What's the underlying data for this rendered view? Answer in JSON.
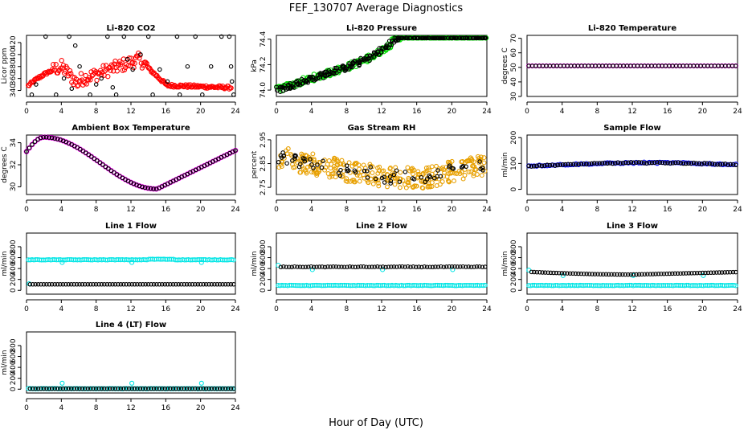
{
  "figure": {
    "title": "FEF_130707  Average Diagnostics",
    "xlabel": "Hour of Day (UTC)"
  },
  "chart_data": [
    {
      "type": "scatter",
      "title": "Li-820 CO2",
      "ylabel": "Licor ppm",
      "xlim": [
        0,
        24
      ],
      "ylim": [
        330,
        432
      ],
      "xticks": [
        0,
        4,
        8,
        12,
        16,
        20,
        24
      ],
      "yticks": [
        340,
        360,
        380,
        400,
        420
      ],
      "series": [
        {
          "color": "#ff0000",
          "size": 2.6,
          "cloud": "co2"
        },
        {
          "color": "#000000",
          "size": 2.2,
          "points": [
            [
              0.6,
              333
            ],
            [
              1.1,
              350
            ],
            [
              2.2,
              430
            ],
            [
              3.4,
              333
            ],
            [
              4.3,
              360
            ],
            [
              4.9,
              430
            ],
            [
              5.2,
              343
            ],
            [
              5.6,
              415
            ],
            [
              6.1,
              380
            ],
            [
              7.3,
              333
            ],
            [
              8.0,
              350
            ],
            [
              8.6,
              360
            ],
            [
              9.3,
              430
            ],
            [
              9.9,
              345
            ],
            [
              10.3,
              333
            ],
            [
              11.2,
              430
            ],
            [
              11.6,
              392
            ],
            [
              12.2,
              375
            ],
            [
              13.1,
              400
            ],
            [
              14.0,
              430
            ],
            [
              14.5,
              333
            ],
            [
              15.3,
              375
            ],
            [
              16.2,
              355
            ],
            [
              17.3,
              430
            ],
            [
              17.6,
              333
            ],
            [
              18.5,
              380
            ],
            [
              19.4,
              430
            ],
            [
              20.2,
              333
            ],
            [
              21.2,
              380
            ],
            [
              22.4,
              430
            ],
            [
              23.3,
              430
            ],
            [
              23.5,
              380
            ],
            [
              23.6,
              355
            ],
            [
              23.8,
              333
            ]
          ]
        }
      ]
    },
    {
      "type": "scatter",
      "title": "Li-820 Pressure",
      "ylabel": "kPa",
      "xlim": [
        0,
        24
      ],
      "ylim": [
        73.95,
        74.43
      ],
      "xticks": [
        0,
        4,
        8,
        12,
        16,
        20,
        24
      ],
      "yticks": [
        74.0,
        74.2,
        74.4
      ],
      "ytick_labels": [
        "74.0",
        "74.2",
        "74.4"
      ],
      "series": [
        {
          "color": "#00dd00",
          "size": 2.6,
          "cloud": "pressure"
        },
        {
          "color": "#000000",
          "size": 2.2,
          "curve": "pressure"
        }
      ]
    },
    {
      "type": "scatter",
      "title": "Li-820 Temperature",
      "ylabel": "degrees C",
      "xlim": [
        0,
        24
      ],
      "ylim": [
        30,
        72
      ],
      "xticks": [
        0,
        4,
        8,
        12,
        16,
        20,
        24
      ],
      "yticks": [
        30,
        40,
        50,
        60,
        70
      ],
      "series": [
        {
          "color": "#ff00ff",
          "size": 2.6,
          "curve": "flat51"
        },
        {
          "color": "#000000",
          "size": 2.2,
          "curve": "flat51"
        }
      ]
    },
    {
      "type": "scatter",
      "title": "Ambient Box Temperature",
      "ylabel": "degrees C",
      "xlim": [
        0,
        24
      ],
      "ylim": [
        29.3,
        34.7
      ],
      "xticks": [
        0,
        4,
        8,
        12,
        16,
        20,
        24
      ],
      "yticks": [
        30,
        32,
        34
      ],
      "series": [
        {
          "color": "#ff00ff",
          "size": 2.8,
          "curve": "ambient"
        },
        {
          "color": "#000000",
          "size": 2.2,
          "curve": "ambient"
        }
      ]
    },
    {
      "type": "scatter",
      "title": "Gas Stream RH",
      "ylabel": "percent",
      "xlim": [
        0,
        24
      ],
      "ylim": [
        2.72,
        2.97
      ],
      "xticks": [
        0,
        4,
        8,
        12,
        16,
        20,
        24
      ],
      "yticks": [
        2.75,
        2.85,
        2.95
      ],
      "ytick_labels": [
        "2.75",
        "2.85",
        "2.95"
      ],
      "series": [
        {
          "color": "#e8a000",
          "size": 2.4,
          "cloud": "rh"
        },
        {
          "color": "#000000",
          "size": 2.2,
          "curve": "rh"
        }
      ]
    },
    {
      "type": "scatter",
      "title": "Sample Flow",
      "ylabel": "ml/min",
      "xlim": [
        0,
        24
      ],
      "ylim": [
        -20,
        210
      ],
      "xticks": [
        0,
        4,
        8,
        12,
        16,
        20,
        24
      ],
      "yticks": [
        0,
        100,
        200
      ],
      "series": [
        {
          "color": "#0000ff",
          "size": 2.6,
          "curve": "sample"
        },
        {
          "color": "#000000",
          "size": 2.2,
          "curve": "sample"
        }
      ]
    },
    {
      "type": "scatter",
      "title": "Line 1 Flow",
      "ylabel": "ml/min",
      "xlim": [
        0,
        24
      ],
      "ylim": [
        -70,
        1050
      ],
      "xticks": [
        0,
        4,
        8,
        12,
        16,
        20,
        24
      ],
      "yticks": [
        0,
        200,
        400,
        600,
        800
      ],
      "series": [
        {
          "color": "#00e5e5",
          "size": 2.5,
          "curve": "line1_cyan"
        },
        {
          "color": "#000000",
          "size": 2.2,
          "curve": "line1_black"
        }
      ]
    },
    {
      "type": "scatter",
      "title": "Line 2 Flow",
      "ylabel": "ml/min",
      "xlim": [
        0,
        24
      ],
      "ylim": [
        -70,
        1050
      ],
      "xticks": [
        0,
        4,
        8,
        12,
        16,
        20,
        24
      ],
      "yticks": [
        0,
        200,
        400,
        600,
        800
      ],
      "series": [
        {
          "color": "#00e5e5",
          "size": 2.5,
          "curve": "line2_cyan"
        },
        {
          "color": "#000000",
          "size": 2.2,
          "curve": "line2_black"
        }
      ]
    },
    {
      "type": "scatter",
      "title": "Line 3 Flow",
      "ylabel": "ml/min",
      "xlim": [
        0,
        24
      ],
      "ylim": [
        -70,
        1050
      ],
      "xticks": [
        0,
        4,
        8,
        12,
        16,
        20,
        24
      ],
      "yticks": [
        0,
        200,
        400,
        600,
        800
      ],
      "series": [
        {
          "color": "#00e5e5",
          "size": 2.5,
          "curve": "line3_cyan"
        },
        {
          "color": "#000000",
          "size": 2.2,
          "curve": "line3_black"
        }
      ]
    },
    {
      "type": "scatter",
      "title": "Line 4 (LT) Flow",
      "ylabel": "ml/min",
      "xlim": [
        0,
        24
      ],
      "ylim": [
        -70,
        1050
      ],
      "xticks": [
        0,
        4,
        8,
        12,
        16,
        20,
        24
      ],
      "yticks": [
        0,
        200,
        400,
        600,
        800
      ],
      "series": [
        {
          "color": "#00e5e5",
          "size": 2.5,
          "curve": "line4_cyan"
        },
        {
          "color": "#000000",
          "size": 2.2,
          "curve": "line4_black"
        }
      ]
    }
  ]
}
